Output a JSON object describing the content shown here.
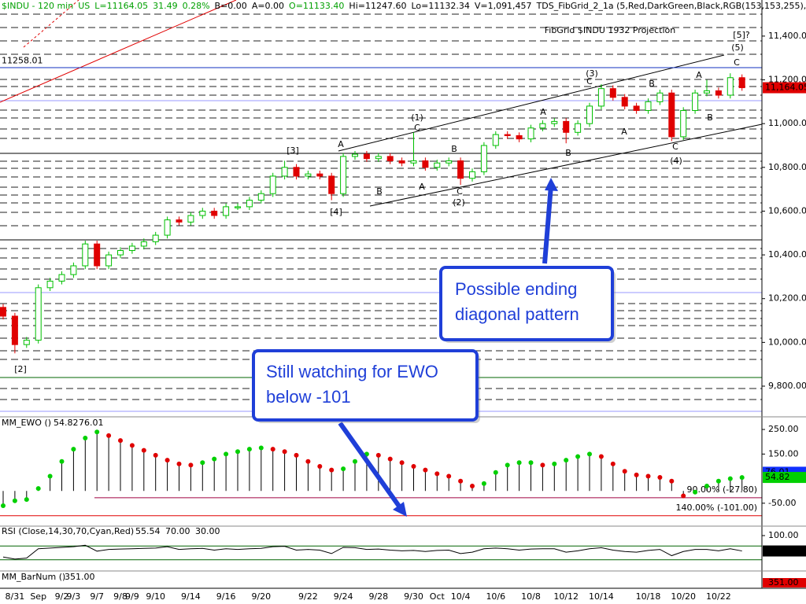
{
  "chart_data": {
    "type": "candlestick",
    "header": [
      {
        "text": "$INDU - 120 min",
        "color": "#00a000"
      },
      {
        "text": "US",
        "color": "#00a000"
      },
      {
        "text": "L=11164.05",
        "color": "#00a000"
      },
      {
        "text": "31.49",
        "color": "#00a000"
      },
      {
        "text": "0.28%",
        "color": "#00a000"
      },
      {
        "text": "B=0.00",
        "color": "#000"
      },
      {
        "text": "A=0.00",
        "color": "#000"
      },
      {
        "text": "O=11133.40",
        "color": "#00a000"
      },
      {
        "text": "Hi=11247.60",
        "color": "#000"
      },
      {
        "text": "Lo=11132.34",
        "color": "#000"
      },
      {
        "text": "V=1,091,457",
        "color": "#000"
      },
      {
        "text": "TDS_FibGrid_2_1a (5,Red,DarkGreen,Black,RGB(153,153,255),...",
        "color": "#000"
      }
    ],
    "projection_title": "FibGrid $INDU 1932 Projection",
    "level_label": {
      "value": 11258.01,
      "label": "11258.01"
    },
    "last_price_label": "11,164.05",
    "ylim": [
      9667,
      11565
    ],
    "yticks": [
      {
        "value": 11400,
        "label": "11,400.00"
      },
      {
        "value": 11200,
        "label": "11,200.00"
      },
      {
        "value": 11000,
        "label": "11,000.00"
      },
      {
        "value": 10800,
        "label": "10,800.00"
      },
      {
        "value": 10600,
        "label": "10,600.00"
      },
      {
        "value": 10400,
        "label": "10,400.00"
      },
      {
        "value": 10200,
        "label": "10,200.00"
      },
      {
        "value": 10000,
        "label": "10,000.00"
      },
      {
        "value": 9800,
        "label": "9,800.00"
      }
    ],
    "up_color": "#00c000",
    "down_color": "#e00000",
    "categories": [
      null,
      "8/31",
      null,
      "Sep",
      null,
      "9/2",
      "9/3",
      null,
      "9/7",
      null,
      "9/8",
      "9/9",
      null,
      "9/10",
      null,
      null,
      "9/14",
      null,
      null,
      "9/16",
      null,
      null,
      "9/20",
      null,
      null,
      null,
      "9/22",
      null,
      null,
      "9/24",
      null,
      null,
      "9/28",
      null,
      null,
      "9/30",
      null,
      "Oct",
      null,
      "10/4",
      null,
      null,
      "10/6",
      null,
      null,
      "10/8",
      null,
      null,
      "10/12",
      null,
      null,
      "10/14",
      null,
      null,
      null,
      "10/18",
      null,
      null,
      "10/20",
      null,
      null,
      "10/22",
      null,
      null
    ],
    "candles": [
      {
        "o": 10160,
        "h": 10175,
        "l": 10105,
        "c": 10120
      },
      {
        "o": 10120,
        "h": 10135,
        "l": 9950,
        "c": 9990
      },
      {
        "o": 9990,
        "h": 10025,
        "l": 9975,
        "c": 10010
      },
      {
        "o": 10010,
        "h": 10265,
        "l": 9995,
        "c": 10250
      },
      {
        "o": 10250,
        "h": 10295,
        "l": 10235,
        "c": 10280
      },
      {
        "o": 10280,
        "h": 10325,
        "l": 10265,
        "c": 10310
      },
      {
        "o": 10310,
        "h": 10365,
        "l": 10295,
        "c": 10350
      },
      {
        "o": 10350,
        "h": 10465,
        "l": 10335,
        "c": 10450
      },
      {
        "o": 10450,
        "h": 10465,
        "l": 10335,
        "c": 10350
      },
      {
        "o": 10350,
        "h": 10415,
        "l": 10335,
        "c": 10400
      },
      {
        "o": 10400,
        "h": 10435,
        "l": 10385,
        "c": 10420
      },
      {
        "o": 10420,
        "h": 10455,
        "l": 10405,
        "c": 10440
      },
      {
        "o": 10440,
        "h": 10475,
        "l": 10425,
        "c": 10460
      },
      {
        "o": 10460,
        "h": 10505,
        "l": 10445,
        "c": 10490
      },
      {
        "o": 10490,
        "h": 10575,
        "l": 10475,
        "c": 10560
      },
      {
        "o": 10560,
        "h": 10575,
        "l": 10535,
        "c": 10550
      },
      {
        "o": 10550,
        "h": 10595,
        "l": 10535,
        "c": 10580
      },
      {
        "o": 10580,
        "h": 10615,
        "l": 10565,
        "c": 10600
      },
      {
        "o": 10600,
        "h": 10615,
        "l": 10565,
        "c": 10580
      },
      {
        "o": 10580,
        "h": 10635,
        "l": 10565,
        "c": 10620
      },
      {
        "o": 10615,
        "h": 10635,
        "l": 10605,
        "c": 10620
      },
      {
        "o": 10620,
        "h": 10665,
        "l": 10605,
        "c": 10650
      },
      {
        "o": 10650,
        "h": 10695,
        "l": 10635,
        "c": 10680
      },
      {
        "o": 10680,
        "h": 10775,
        "l": 10665,
        "c": 10760
      },
      {
        "o": 10760,
        "h": 10830,
        "l": 10745,
        "c": 10800
      },
      {
        "o": 10800,
        "h": 10815,
        "l": 10745,
        "c": 10760
      },
      {
        "o": 10760,
        "h": 10785,
        "l": 10745,
        "c": 10770
      },
      {
        "o": 10770,
        "h": 10785,
        "l": 10745,
        "c": 10760
      },
      {
        "o": 10760,
        "h": 10775,
        "l": 10650,
        "c": 10680
      },
      {
        "o": 10680,
        "h": 10865,
        "l": 10665,
        "c": 10850
      },
      {
        "o": 10850,
        "h": 10875,
        "l": 10835,
        "c": 10860
      },
      {
        "o": 10860,
        "h": 10875,
        "l": 10825,
        "c": 10840
      },
      {
        "o": 10840,
        "h": 10865,
        "l": 10825,
        "c": 10850
      },
      {
        "o": 10850,
        "h": 10865,
        "l": 10815,
        "c": 10830
      },
      {
        "o": 10830,
        "h": 10845,
        "l": 10805,
        "c": 10820
      },
      {
        "o": 10820,
        "h": 10960,
        "l": 10805,
        "c": 10830
      },
      {
        "o": 10830,
        "h": 10845,
        "l": 10785,
        "c": 10800
      },
      {
        "o": 10800,
        "h": 10835,
        "l": 10785,
        "c": 10820
      },
      {
        "o": 10820,
        "h": 10845,
        "l": 10805,
        "c": 10830
      },
      {
        "o": 10830,
        "h": 10845,
        "l": 10720,
        "c": 10750
      },
      {
        "o": 10750,
        "h": 10795,
        "l": 10735,
        "c": 10780
      },
      {
        "o": 10780,
        "h": 10915,
        "l": 10765,
        "c": 10900
      },
      {
        "o": 10900,
        "h": 10965,
        "l": 10885,
        "c": 10950
      },
      {
        "o": 10950,
        "h": 10965,
        "l": 10930,
        "c": 10945
      },
      {
        "o": 10945,
        "h": 10960,
        "l": 10915,
        "c": 10930
      },
      {
        "o": 10930,
        "h": 10995,
        "l": 10915,
        "c": 10980
      },
      {
        "o": 10980,
        "h": 11015,
        "l": 10965,
        "c": 11000
      },
      {
        "o": 11000,
        "h": 11025,
        "l": 10985,
        "c": 11010
      },
      {
        "o": 11010,
        "h": 11025,
        "l": 10910,
        "c": 10960
      },
      {
        "o": 10960,
        "h": 11015,
        "l": 10945,
        "c": 11000
      },
      {
        "o": 11000,
        "h": 11095,
        "l": 10985,
        "c": 11080
      },
      {
        "o": 11080,
        "h": 11180,
        "l": 11065,
        "c": 11160
      },
      {
        "o": 11160,
        "h": 11175,
        "l": 11105,
        "c": 11120
      },
      {
        "o": 11120,
        "h": 11135,
        "l": 11065,
        "c": 11080
      },
      {
        "o": 11080,
        "h": 11095,
        "l": 11045,
        "c": 11060
      },
      {
        "o": 11060,
        "h": 11115,
        "l": 11045,
        "c": 11100
      },
      {
        "o": 11100,
        "h": 11155,
        "l": 11085,
        "c": 11140
      },
      {
        "o": 11140,
        "h": 11155,
        "l": 10920,
        "c": 10940
      },
      {
        "o": 10940,
        "h": 11075,
        "l": 10925,
        "c": 11060
      },
      {
        "o": 11060,
        "h": 11155,
        "l": 11045,
        "c": 11140
      },
      {
        "o": 11140,
        "h": 11200,
        "l": 11125,
        "c": 11150
      },
      {
        "o": 11150,
        "h": 11165,
        "l": 11115,
        "c": 11130
      },
      {
        "o": 11130,
        "h": 11230,
        "l": 11115,
        "c": 11210
      },
      {
        "o": 11210,
        "h": 11225,
        "l": 11150,
        "c": 11164.05
      }
    ],
    "wave_labels": [
      "[2]",
      "[3]",
      "[4]",
      "A",
      "B",
      "(1)",
      "C",
      "A",
      "B",
      "C",
      "(2)",
      "A",
      "B",
      "(3)",
      "C",
      "B",
      "A",
      "C",
      "(4)",
      "A",
      "B",
      "[5]?",
      "(5)",
      "C"
    ],
    "callouts": [
      {
        "lines": [
          "Possible ending",
          "diagonal pattern"
        ]
      },
      {
        "lines": [
          "Still watching for EWO",
          "below -101"
        ]
      }
    ],
    "ewo": {
      "name": "MM_EWO ()",
      "value1": 54.82,
      "value2": 76.01,
      "ylim": [
        -140,
        295
      ],
      "yticks": [
        {
          "value": 250,
          "label": "250.00"
        },
        {
          "value": 150,
          "label": "150.00"
        },
        {
          "value": -50,
          "label": "-50.00"
        }
      ],
      "levels": [
        {
          "value": -27.8,
          "label": "90.00% (-27.80)"
        },
        {
          "value": -101,
          "label": "140.00% (-101.00)"
        }
      ],
      "values": [
        -60,
        -40,
        -35,
        10,
        60,
        120,
        170,
        215,
        240,
        225,
        205,
        185,
        165,
        145,
        125,
        110,
        105,
        115,
        130,
        150,
        160,
        170,
        175,
        170,
        160,
        145,
        120,
        100,
        85,
        90,
        120,
        150,
        145,
        130,
        115,
        100,
        85,
        70,
        60,
        40,
        20,
        30,
        75,
        105,
        115,
        115,
        105,
        110,
        125,
        140,
        150,
        140,
        110,
        80,
        65,
        60,
        55,
        40,
        -20,
        -5,
        20,
        40,
        50,
        54.82
      ]
    },
    "rsi": {
      "name": "RSI (Close,14,30,70,Cyan,Red)",
      "value": 55.54,
      "upper": {
        "value": 70,
        "label": "70.00"
      },
      "lower": {
        "value": 30,
        "label": "30.00"
      },
      "ylim": [
        0,
        125
      ],
      "yticks": [
        {
          "value": 100,
          "label": "100.00"
        }
      ],
      "values": [
        38,
        32,
        35,
        62,
        64,
        66,
        68,
        72,
        55,
        60,
        61,
        62,
        63,
        64,
        68,
        60,
        62,
        63,
        58,
        62,
        60,
        62,
        63,
        68,
        69,
        58,
        60,
        58,
        48,
        66,
        65,
        60,
        61,
        58,
        56,
        57,
        54,
        57,
        58,
        48,
        52,
        62,
        64,
        62,
        58,
        61,
        62,
        62,
        52,
        56,
        62,
        65,
        58,
        54,
        52,
        57,
        60,
        42,
        54,
        60,
        60,
        56,
        62,
        55.54
      ]
    },
    "barnum": {
      "name": "MM_BarNum ()",
      "value": {
        "value": 351,
        "label": "351.00"
      }
    }
  }
}
